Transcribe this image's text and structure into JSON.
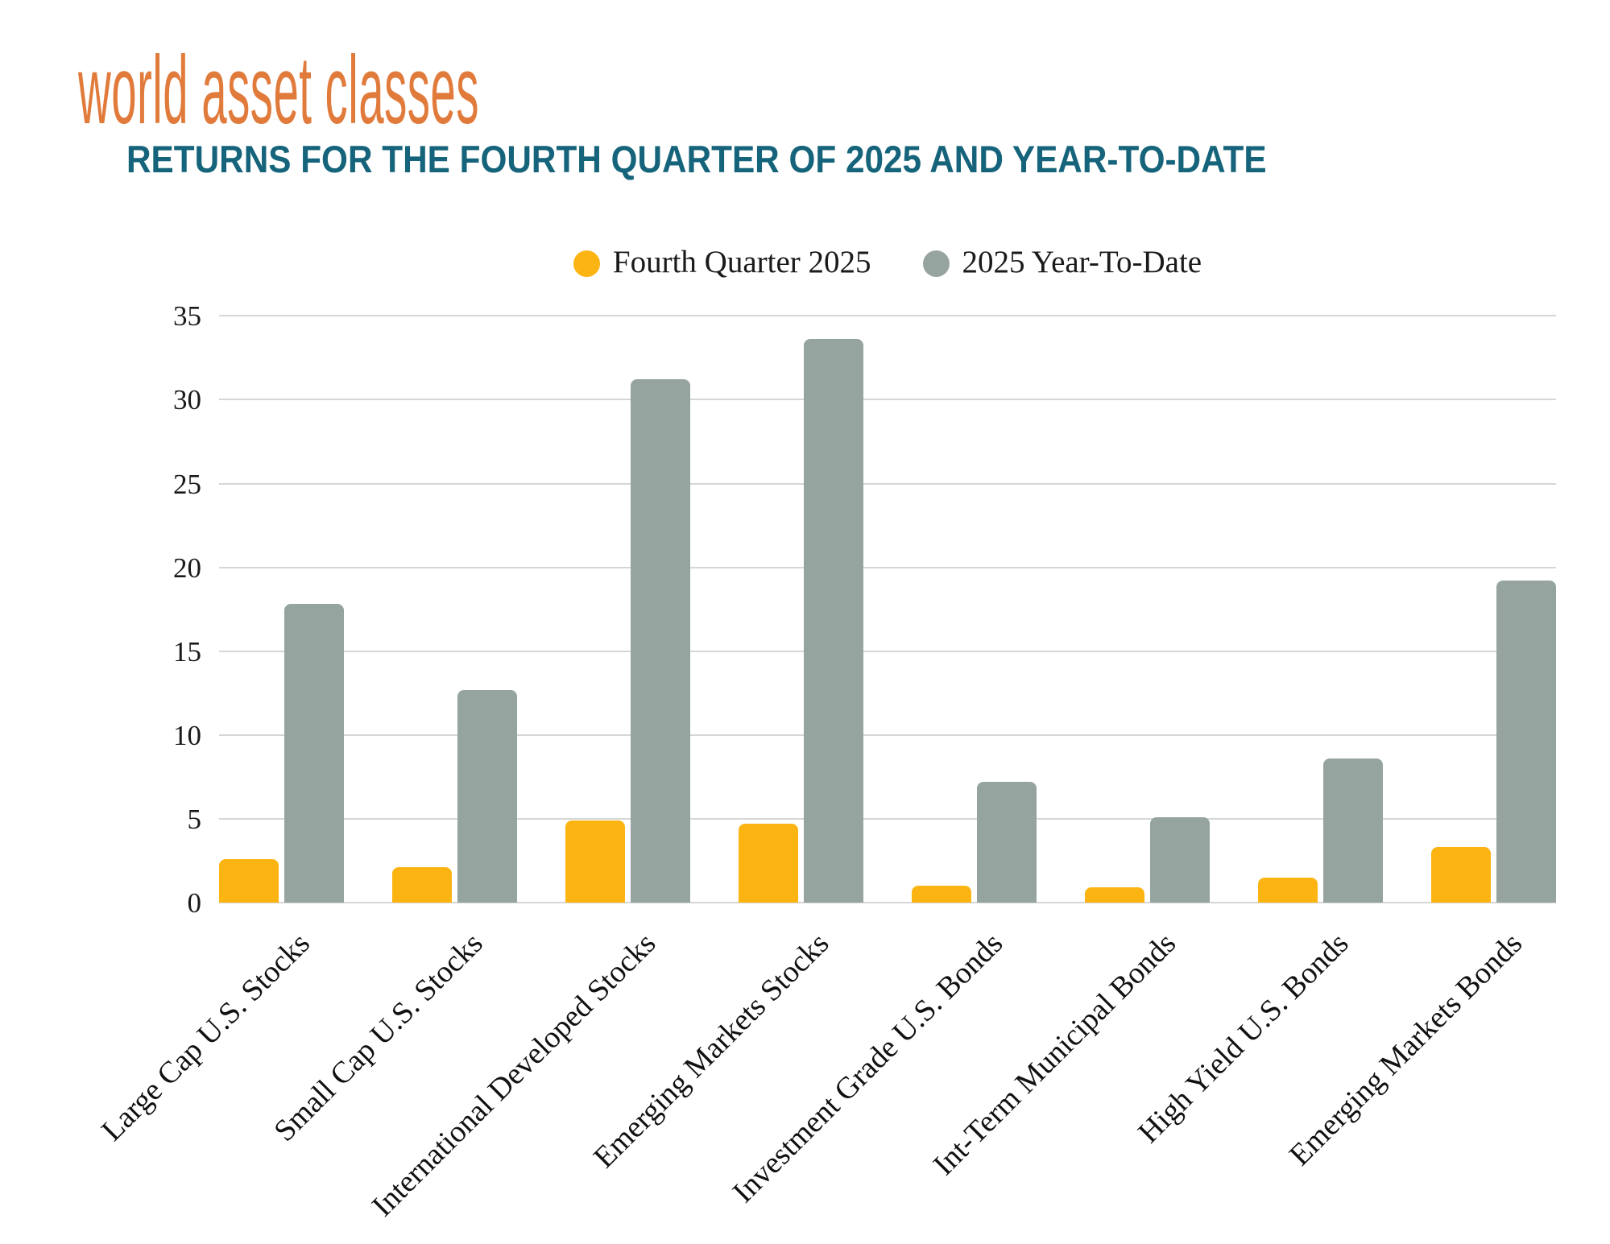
{
  "header": {
    "title": "world asset classes",
    "subtitle": "RETURNS FOR THE FOURTH QUARTER OF 2025 AND YEAR-TO-DATE"
  },
  "chart_data": {
    "type": "bar",
    "title": "world asset classes",
    "subtitle": "RETURNS FOR THE FOURTH QUARTER OF 2025 AND YEAR-TO-DATE",
    "categories": [
      "Large Cap U.S. Stocks",
      "Small Cap U.S. Stocks",
      "International Developed Stocks",
      "Emerging Markets Stocks",
      "Investment Grade U.S. Bonds",
      "Int-Term Municipal Bonds",
      "High Yield U.S. Bonds",
      "Emerging Markets Bonds"
    ],
    "series": [
      {
        "name": "Fourth Quarter 2025",
        "color": "#FCB413",
        "values": [
          2.6,
          2.1,
          4.9,
          4.7,
          1.0,
          0.9,
          1.5,
          3.3
        ]
      },
      {
        "name": "2025 Year-To-Date",
        "color": "#96A49F",
        "values": [
          17.8,
          12.7,
          31.2,
          33.6,
          7.2,
          5.1,
          8.6,
          19.2
        ]
      }
    ],
    "xlabel": "",
    "ylabel": "",
    "ylim": [
      0,
      35
    ],
    "ytick_step": 5,
    "yticks": [
      "0",
      "5",
      "10",
      "15",
      "20",
      "25",
      "30",
      "35"
    ],
    "grid": true,
    "legend_position": "top-center",
    "xlabel_rotation_deg": -45
  },
  "colors": {
    "title_orange": "#E17B3C",
    "subtitle_teal": "#15647B",
    "bar_yellow": "#FCB413",
    "bar_gray": "#96A49F",
    "gridline": "#D6D6D6",
    "axis_text": "#1A1A1A",
    "background": "#FFFFFF"
  }
}
